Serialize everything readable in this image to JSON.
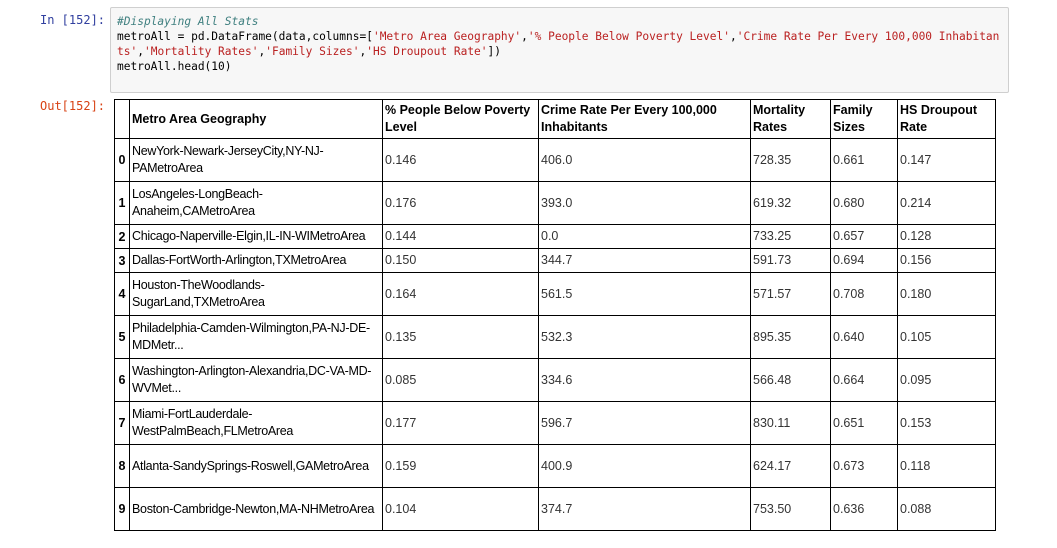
{
  "notebook": {
    "input_prompt": "In [152]:",
    "output_prompt": "Out[152]:",
    "code_lines": [
      "#Displaying All Stats",
      "metroAll = pd.DataFrame(data,columns=['Metro Area Geography','% People Below Poverty Level','Crime Rate Per Every 100,000 Inhabitants','Mortality Rates','Family Sizes','HS Droupout Rate'])",
      "metroAll.head(10)"
    ]
  },
  "table": {
    "columns": [
      "Metro Area Geography",
      "% People Below Poverty Level",
      "Crime Rate Per Every 100,000 Inhabitants",
      "Mortality Rates",
      "Family Sizes",
      "HS Droupout Rate"
    ],
    "rows": [
      {
        "index": "0",
        "geo": "NewYork-Newark-JerseyCity,NY-NJ-PAMetroArea",
        "poverty": "0.146",
        "crime": "406.0",
        "mortality": "728.35",
        "family": "0.661",
        "hs": "0.147"
      },
      {
        "index": "1",
        "geo": "LosAngeles-LongBeach-Anaheim,CAMetroArea",
        "poverty": "0.176",
        "crime": "393.0",
        "mortality": "619.32",
        "family": "0.680",
        "hs": "0.214"
      },
      {
        "index": "2",
        "geo": "Chicago-Naperville-Elgin,IL-IN-WIMetroArea",
        "poverty": "0.144",
        "crime": "0.0",
        "mortality": "733.25",
        "family": "0.657",
        "hs": "0.128"
      },
      {
        "index": "3",
        "geo": "Dallas-FortWorth-Arlington,TXMetroArea",
        "poverty": "0.150",
        "crime": "344.7",
        "mortality": "591.73",
        "family": "0.694",
        "hs": "0.156"
      },
      {
        "index": "4",
        "geo": "Houston-TheWoodlands-SugarLand,TXMetroArea",
        "poverty": "0.164",
        "crime": "561.5",
        "mortality": "571.57",
        "family": "0.708",
        "hs": "0.180"
      },
      {
        "index": "5",
        "geo": "Philadelphia-Camden-Wilmington,PA-NJ-DE-MDMetr...",
        "poverty": "0.135",
        "crime": "532.3",
        "mortality": "895.35",
        "family": "0.640",
        "hs": "0.105"
      },
      {
        "index": "6",
        "geo": "Washington-Arlington-Alexandria,DC-VA-MD-WVMet...",
        "poverty": "0.085",
        "crime": "334.6",
        "mortality": "566.48",
        "family": "0.664",
        "hs": "0.095"
      },
      {
        "index": "7",
        "geo": "Miami-FortLauderdale-WestPalmBeach,FLMetroArea",
        "poverty": "0.177",
        "crime": "596.7",
        "mortality": "830.11",
        "family": "0.651",
        "hs": "0.153"
      },
      {
        "index": "8",
        "geo": "Atlanta-SandySprings-Roswell,GAMetroArea",
        "poverty": "0.159",
        "crime": "400.9",
        "mortality": "624.17",
        "family": "0.673",
        "hs": "0.118"
      },
      {
        "index": "9",
        "geo": "Boston-Cambridge-Newton,MA-NHMetroArea",
        "poverty": "0.104",
        "crime": "374.7",
        "mortality": "753.50",
        "family": "0.636",
        "hs": "0.088"
      }
    ]
  }
}
